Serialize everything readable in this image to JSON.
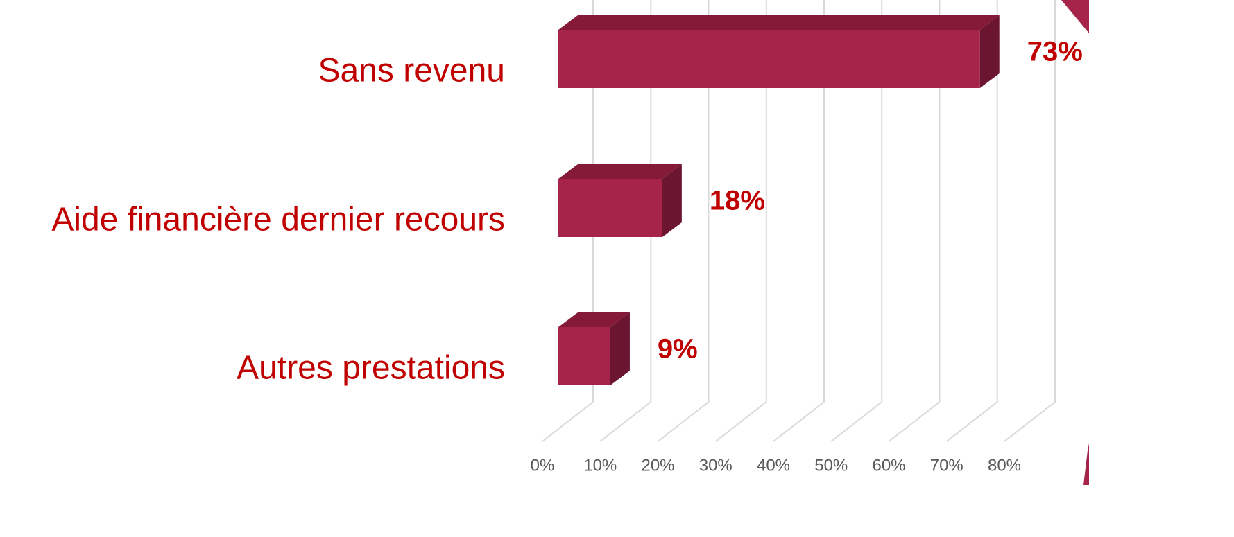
{
  "chart_data": {
    "type": "bar3d_horizontal",
    "categories": [
      "Sans revenu",
      "Aide financière dernier recours",
      "Autres prestations"
    ],
    "values": [
      73,
      18,
      9
    ],
    "value_labels": [
      "73%",
      "18%",
      "9%"
    ],
    "color": "#a6234a",
    "xlim": [
      0,
      80
    ],
    "xticks": [
      {
        "value": 0,
        "label": "0%"
      },
      {
        "value": 10,
        "label": "10%"
      },
      {
        "value": 20,
        "label": "20%"
      },
      {
        "value": 30,
        "label": "30%"
      },
      {
        "value": 40,
        "label": "40%"
      },
      {
        "value": 50,
        "label": "50%"
      },
      {
        "value": 60,
        "label": "60%"
      },
      {
        "value": 70,
        "label": "70%"
      },
      {
        "value": 80,
        "label": "80%"
      }
    ],
    "grid": true
  }
}
